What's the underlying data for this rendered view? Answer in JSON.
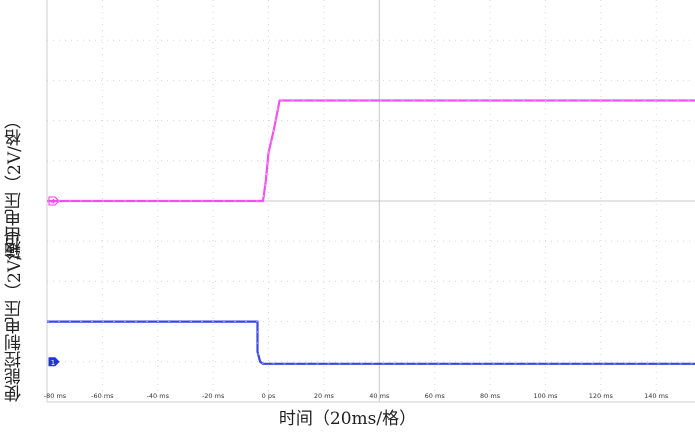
{
  "chart_data": {
    "type": "line",
    "title": "",
    "xlabel": "时间（20ms/格）",
    "x_unit": "ms",
    "x_ticks": [
      -80,
      -60,
      -40,
      -20,
      0,
      20,
      40,
      60,
      80,
      100,
      120,
      140
    ],
    "x_tick_labels": [
      "-80 ms",
      "-60 ms",
      "-40 ms",
      "-20 ms",
      "0 ps",
      "20 ms",
      "40 ms",
      "60 ms",
      "80 ms",
      "100 ms",
      "120 ms",
      "140 ms"
    ],
    "xlim": [
      -80,
      154
    ],
    "ylim_divisions": [
      0,
      9
    ],
    "grid": true,
    "series": [
      {
        "channel": "4",
        "color": "#ee3ff0",
        "ylabel": "输出电压（2V/格）",
        "ref_division": 5.0,
        "x": [
          -80,
          -2,
          -1,
          0,
          2,
          4,
          154
        ],
        "y_div": [
          5.0,
          5.0,
          5.5,
          6.2,
          6.8,
          7.5,
          7.5
        ]
      },
      {
        "channel": "1",
        "color": "#2233dd",
        "ylabel": "使能控制电压（2V/格）",
        "ref_division": 1.0,
        "x": [
          -80,
          -4,
          -4,
          -3,
          -2,
          154
        ],
        "y_div": [
          2.0,
          2.0,
          1.25,
          1.0,
          0.95,
          0.95
        ]
      }
    ]
  }
}
